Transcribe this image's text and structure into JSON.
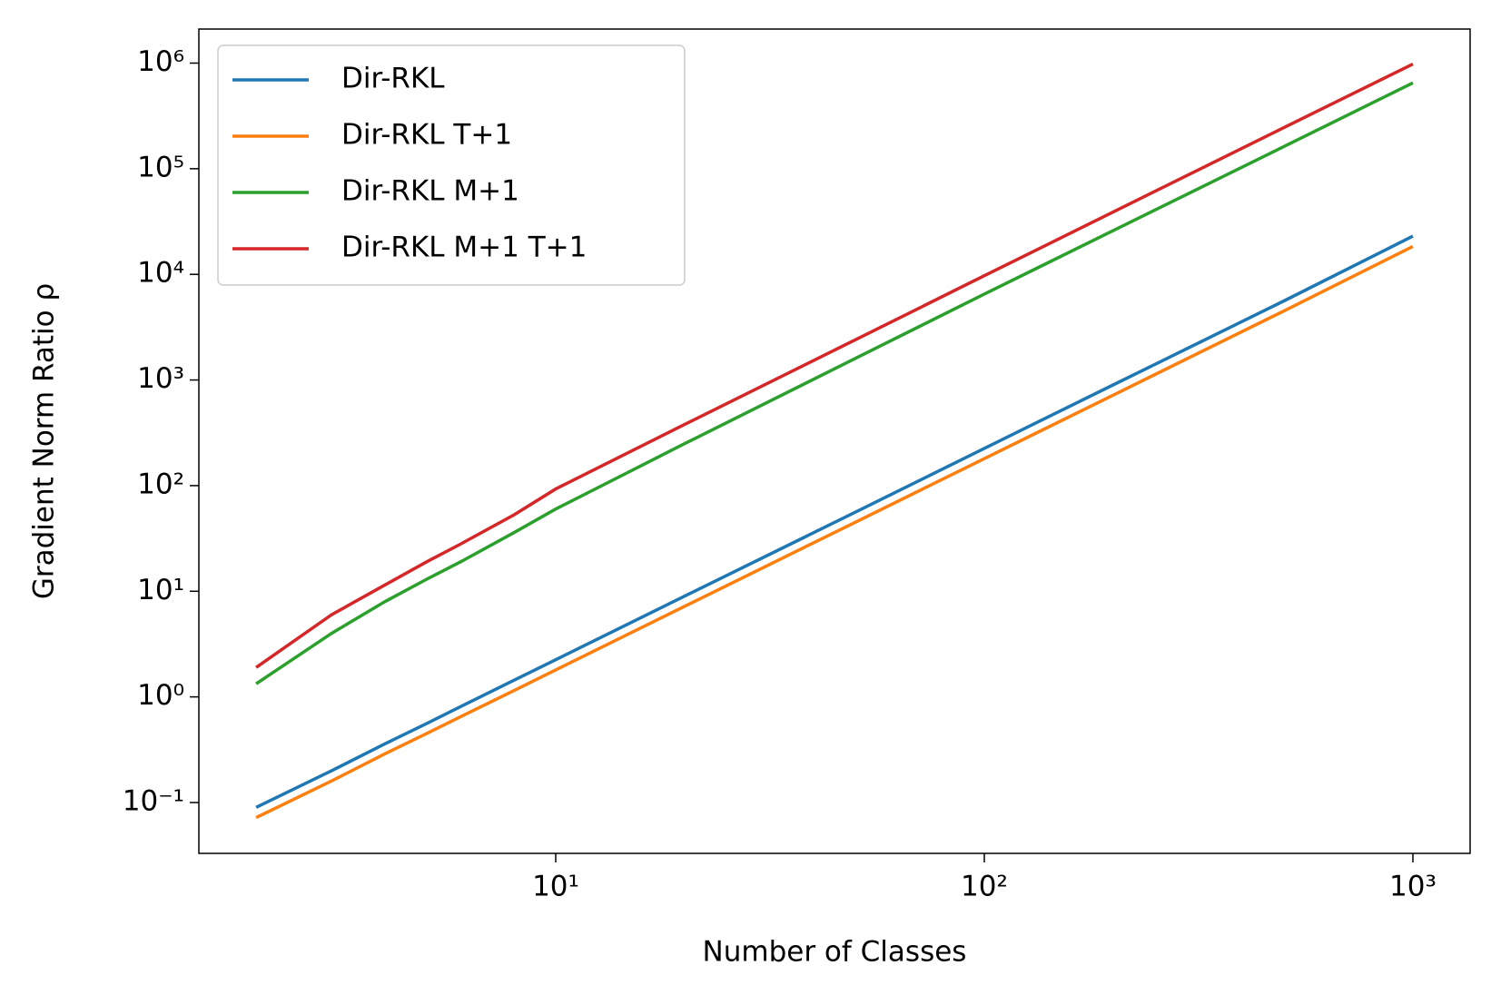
{
  "chart_data": {
    "type": "line",
    "x_label": "Number of Classes",
    "y_label": "Gradient Norm Ratio ρ",
    "x": [
      2,
      3,
      4,
      5,
      6,
      8,
      10,
      20,
      50,
      100,
      200,
      500,
      1000
    ],
    "series": [
      {
        "name": "Dir-RKL",
        "color": "#1f77b4",
        "values": [
          0.09,
          0.2,
          0.36,
          0.56,
          0.81,
          1.44,
          2.25,
          9,
          56,
          225,
          900,
          5600,
          23000
        ]
      },
      {
        "name": "Dir-RKL T+1",
        "color": "#ff7f0e",
        "values": [
          0.072,
          0.16,
          0.29,
          0.45,
          0.65,
          1.15,
          1.8,
          7.2,
          45,
          180,
          720,
          4500,
          18400
        ]
      },
      {
        "name": "Dir-RKL M+1",
        "color": "#2ca02c",
        "values": [
          1.33,
          4.0,
          8,
          13,
          19,
          36,
          60,
          250,
          1600,
          6500,
          26000,
          162000,
          650000
        ]
      },
      {
        "name": "Dir-RKL M+1 T+1",
        "color": "#d62728",
        "values": [
          1.9,
          6,
          11.5,
          19,
          28,
          53,
          93,
          380,
          2400,
          9700,
          39000,
          245000,
          980000
        ]
      }
    ],
    "xscale": "log",
    "yscale": "log",
    "xlim": [
      1.47,
      1360
    ],
    "ylim": [
      0.033,
      2100000
    ],
    "xticks": [
      {
        "value": 10,
        "label": "10¹"
      },
      {
        "value": 100,
        "label": "10²"
      },
      {
        "value": 1000,
        "label": "10³"
      }
    ],
    "yticks": [
      {
        "value": 0.1,
        "label": "10⁻¹"
      },
      {
        "value": 1,
        "label": "10⁰"
      },
      {
        "value": 10,
        "label": "10¹"
      },
      {
        "value": 100,
        "label": "10²"
      },
      {
        "value": 1000,
        "label": "10³"
      },
      {
        "value": 10000,
        "label": "10⁴"
      },
      {
        "value": 100000,
        "label": "10⁵"
      },
      {
        "value": 1000000,
        "label": "10⁶"
      }
    ],
    "legend": "upper left",
    "grid": false
  }
}
